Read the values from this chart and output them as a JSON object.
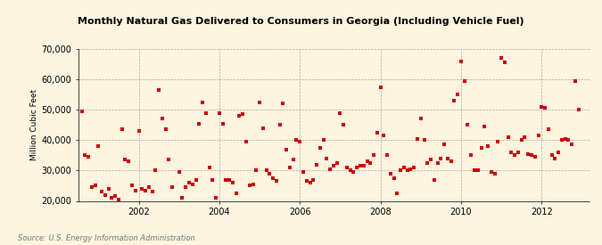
{
  "title": "Monthly Natural Gas Delivered to Consumers in Georgia (Including Vehicle Fuel)",
  "ylabel": "Million Cubic Feet",
  "source": "Source: U.S. Energy Information Administration",
  "background_color": "#FEF5E0",
  "plot_bg_color": "#FEF5E0",
  "marker_color": "#CC0000",
  "marker_size": 5,
  "ylim": [
    20000,
    70000
  ],
  "yticks": [
    20000,
    30000,
    40000,
    50000,
    60000,
    70000
  ],
  "xlim_start": 2000.5,
  "xlim_end": 2013.2,
  "xticks": [
    2002,
    2004,
    2006,
    2008,
    2010,
    2012
  ],
  "data": [
    [
      2000,
      8,
      49500
    ],
    [
      2000,
      9,
      35000
    ],
    [
      2000,
      10,
      34500
    ],
    [
      2000,
      11,
      24500
    ],
    [
      2000,
      12,
      25000
    ],
    [
      2001,
      1,
      38000
    ],
    [
      2001,
      2,
      23000
    ],
    [
      2001,
      3,
      22000
    ],
    [
      2001,
      4,
      24000
    ],
    [
      2001,
      5,
      21000
    ],
    [
      2001,
      6,
      21500
    ],
    [
      2001,
      7,
      20500
    ],
    [
      2001,
      8,
      43500
    ],
    [
      2001,
      9,
      33500
    ],
    [
      2001,
      10,
      33000
    ],
    [
      2001,
      11,
      25000
    ],
    [
      2001,
      12,
      23500
    ],
    [
      2002,
      1,
      43000
    ],
    [
      2002,
      2,
      24000
    ],
    [
      2002,
      3,
      23500
    ],
    [
      2002,
      4,
      24500
    ],
    [
      2002,
      5,
      23000
    ],
    [
      2002,
      6,
      30000
    ],
    [
      2002,
      7,
      56500
    ],
    [
      2002,
      8,
      47000
    ],
    [
      2002,
      9,
      43500
    ],
    [
      2002,
      10,
      33500
    ],
    [
      2002,
      11,
      24500
    ],
    [
      2003,
      1,
      29500
    ],
    [
      2003,
      2,
      21000
    ],
    [
      2003,
      3,
      24500
    ],
    [
      2003,
      4,
      26000
    ],
    [
      2003,
      5,
      25500
    ],
    [
      2003,
      6,
      27000
    ],
    [
      2003,
      7,
      45500
    ],
    [
      2003,
      8,
      52500
    ],
    [
      2003,
      9,
      49000
    ],
    [
      2003,
      10,
      31000
    ],
    [
      2003,
      11,
      27000
    ],
    [
      2003,
      12,
      21000
    ],
    [
      2004,
      1,
      49000
    ],
    [
      2004,
      2,
      45500
    ],
    [
      2004,
      3,
      27000
    ],
    [
      2004,
      4,
      27000
    ],
    [
      2004,
      5,
      26000
    ],
    [
      2004,
      6,
      22500
    ],
    [
      2004,
      7,
      48000
    ],
    [
      2004,
      8,
      48500
    ],
    [
      2004,
      9,
      39500
    ],
    [
      2004,
      10,
      25000
    ],
    [
      2004,
      11,
      25500
    ],
    [
      2004,
      12,
      30000
    ],
    [
      2005,
      1,
      52500
    ],
    [
      2005,
      2,
      44000
    ],
    [
      2005,
      3,
      30000
    ],
    [
      2005,
      4,
      29000
    ],
    [
      2005,
      5,
      27500
    ],
    [
      2005,
      6,
      26500
    ],
    [
      2005,
      7,
      45000
    ],
    [
      2005,
      8,
      52000
    ],
    [
      2005,
      9,
      37000
    ],
    [
      2005,
      10,
      31000
    ],
    [
      2005,
      11,
      33500
    ],
    [
      2005,
      12,
      40000
    ],
    [
      2006,
      1,
      39500
    ],
    [
      2006,
      2,
      29500
    ],
    [
      2006,
      3,
      26500
    ],
    [
      2006,
      4,
      26000
    ],
    [
      2006,
      5,
      27000
    ],
    [
      2006,
      6,
      32000
    ],
    [
      2006,
      7,
      37500
    ],
    [
      2006,
      8,
      40000
    ],
    [
      2006,
      9,
      34000
    ],
    [
      2006,
      10,
      30500
    ],
    [
      2006,
      11,
      31500
    ],
    [
      2006,
      12,
      32500
    ],
    [
      2007,
      1,
      49000
    ],
    [
      2007,
      2,
      45000
    ],
    [
      2007,
      3,
      31000
    ],
    [
      2007,
      4,
      30000
    ],
    [
      2007,
      5,
      29500
    ],
    [
      2007,
      6,
      31000
    ],
    [
      2007,
      7,
      31500
    ],
    [
      2007,
      8,
      31500
    ],
    [
      2007,
      9,
      33000
    ],
    [
      2007,
      10,
      32500
    ],
    [
      2007,
      11,
      35000
    ],
    [
      2007,
      12,
      42500
    ],
    [
      2008,
      1,
      57500
    ],
    [
      2008,
      2,
      41500
    ],
    [
      2008,
      3,
      35000
    ],
    [
      2008,
      4,
      29000
    ],
    [
      2008,
      5,
      27500
    ],
    [
      2008,
      6,
      22500
    ],
    [
      2008,
      7,
      30000
    ],
    [
      2008,
      8,
      31000
    ],
    [
      2008,
      9,
      30000
    ],
    [
      2008,
      10,
      30500
    ],
    [
      2008,
      11,
      31000
    ],
    [
      2008,
      12,
      40500
    ],
    [
      2009,
      1,
      47000
    ],
    [
      2009,
      2,
      40000
    ],
    [
      2009,
      3,
      32500
    ],
    [
      2009,
      4,
      33500
    ],
    [
      2009,
      5,
      27000
    ],
    [
      2009,
      6,
      32500
    ],
    [
      2009,
      7,
      34000
    ],
    [
      2009,
      8,
      38500
    ],
    [
      2009,
      9,
      34000
    ],
    [
      2009,
      10,
      33000
    ],
    [
      2009,
      11,
      53000
    ],
    [
      2009,
      12,
      55000
    ],
    [
      2010,
      1,
      66000
    ],
    [
      2010,
      2,
      59500
    ],
    [
      2010,
      3,
      45000
    ],
    [
      2010,
      4,
      35000
    ],
    [
      2010,
      5,
      30000
    ],
    [
      2010,
      6,
      30000
    ],
    [
      2010,
      7,
      37500
    ],
    [
      2010,
      8,
      44500
    ],
    [
      2010,
      9,
      38000
    ],
    [
      2010,
      10,
      29500
    ],
    [
      2010,
      11,
      29000
    ],
    [
      2010,
      12,
      39500
    ],
    [
      2011,
      1,
      67000
    ],
    [
      2011,
      2,
      65500
    ],
    [
      2011,
      3,
      41000
    ],
    [
      2011,
      4,
      36000
    ],
    [
      2011,
      5,
      35000
    ],
    [
      2011,
      6,
      36000
    ],
    [
      2011,
      7,
      40000
    ],
    [
      2011,
      8,
      41000
    ],
    [
      2011,
      9,
      35500
    ],
    [
      2011,
      10,
      35000
    ],
    [
      2011,
      11,
      34500
    ],
    [
      2011,
      12,
      41500
    ],
    [
      2012,
      1,
      51000
    ],
    [
      2012,
      2,
      50500
    ],
    [
      2012,
      3,
      43500
    ],
    [
      2012,
      4,
      35000
    ],
    [
      2012,
      5,
      34000
    ],
    [
      2012,
      6,
      36000
    ],
    [
      2012,
      7,
      40000
    ],
    [
      2012,
      8,
      40500
    ],
    [
      2012,
      9,
      40000
    ],
    [
      2012,
      10,
      38500
    ],
    [
      2012,
      11,
      59500
    ],
    [
      2012,
      12,
      50000
    ]
  ]
}
